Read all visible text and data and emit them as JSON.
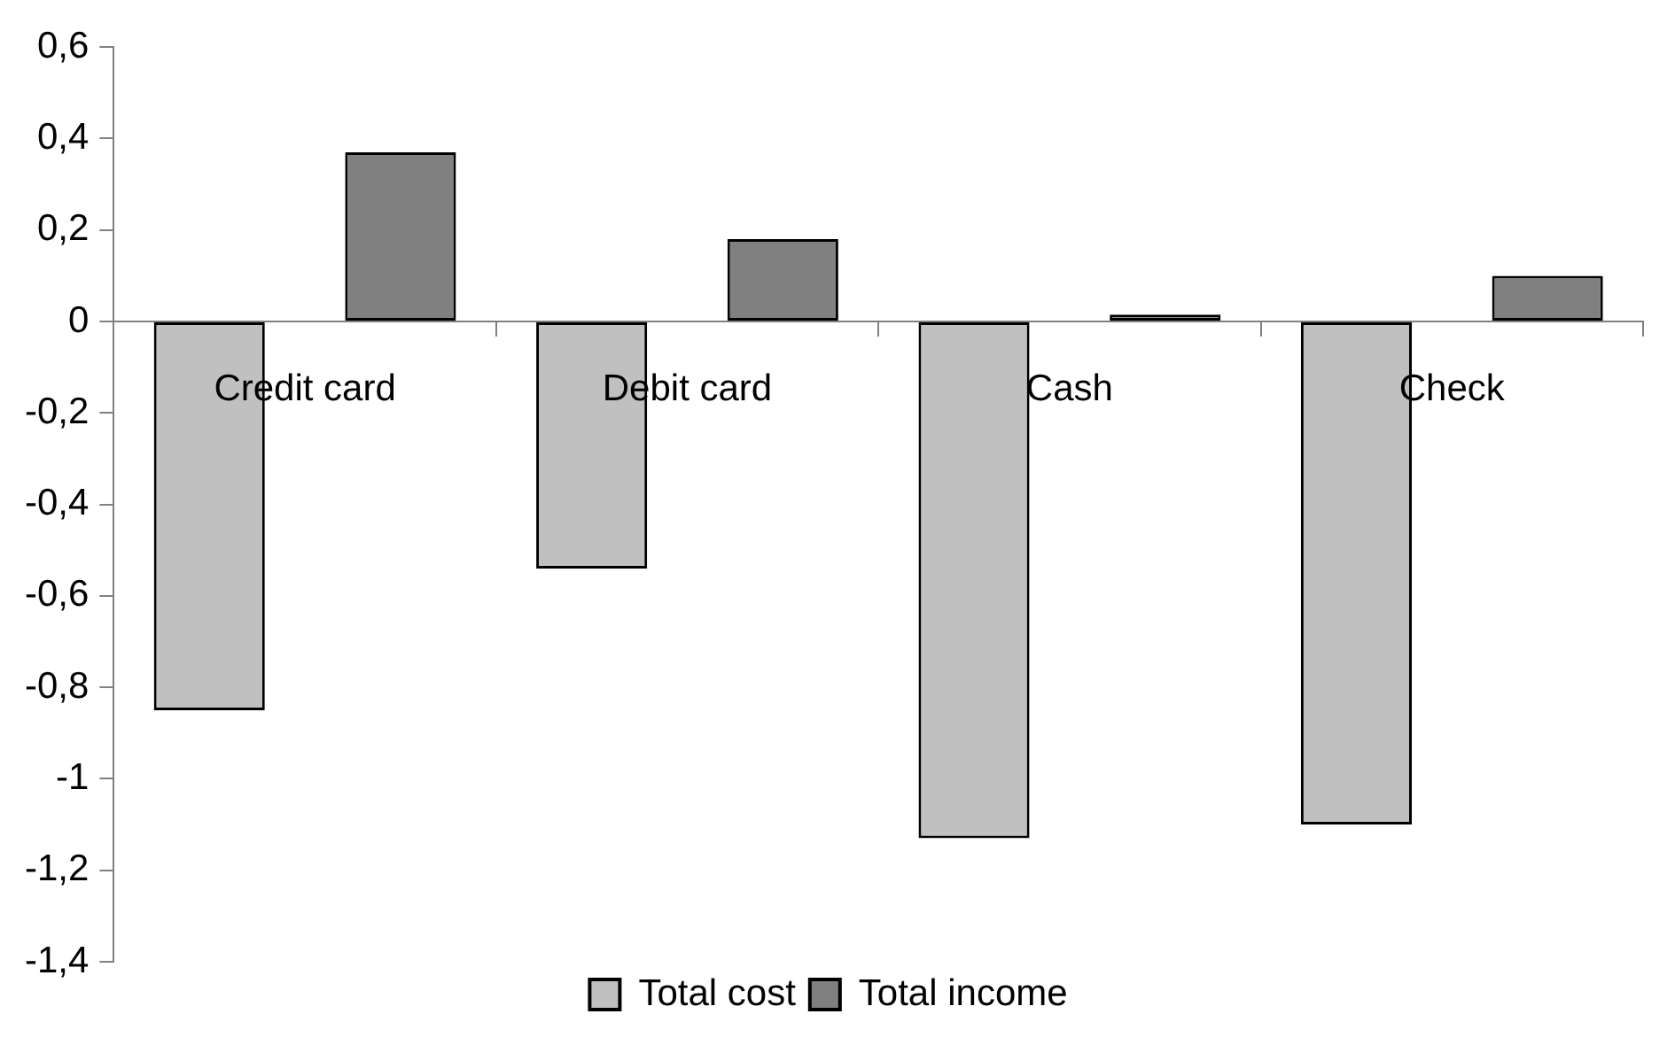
{
  "chart_data": {
    "type": "bar",
    "categories": [
      "Credit card",
      "Debit card",
      "Cash",
      "Check"
    ],
    "series": [
      {
        "name": "Total cost",
        "color": "#c0c0c0",
        "values": [
          -0.85,
          -0.54,
          -1.13,
          -1.1
        ]
      },
      {
        "name": "Total income",
        "color": "#808080",
        "values": [
          0.37,
          0.18,
          0.015,
          0.1
        ]
      }
    ],
    "ylim": [
      -1.4,
      0.6
    ],
    "yticks": [
      {
        "value": 0.6,
        "label": "0,6"
      },
      {
        "value": 0.4,
        "label": "0,4"
      },
      {
        "value": 0.2,
        "label": "0,2"
      },
      0,
      {
        "value": -0.2,
        "label": "-0,2"
      },
      {
        "value": -0.4,
        "label": "-0,4"
      },
      {
        "value": -0.6,
        "label": "-0,6"
      },
      {
        "value": -0.8,
        "label": "-0,8"
      },
      -1,
      {
        "value": -1.2,
        "label": "-1,2"
      },
      {
        "value": -1.4,
        "label": "-1,4"
      }
    ],
    "grid": false,
    "legend": "bottom"
  }
}
